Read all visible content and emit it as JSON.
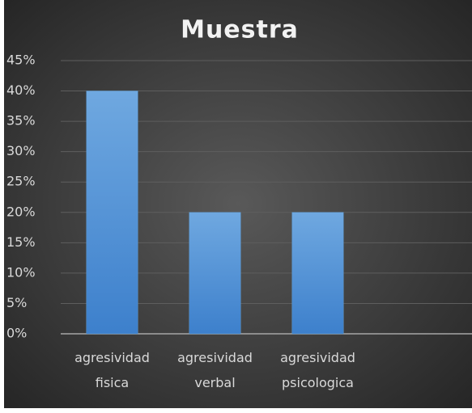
{
  "chart_data": {
    "type": "bar",
    "title": "Muestra",
    "categories": [
      "agresividad fisica",
      "agresividad verbal",
      "agresividad psicologica",
      null
    ],
    "values": [
      40,
      20,
      20,
      null
    ],
    "color": "#5b9bd5",
    "ylim": [
      0,
      45
    ],
    "yticks": [
      {
        "value": 0,
        "label": "0%"
      },
      {
        "value": 5,
        "label": "5%"
      },
      {
        "value": 10,
        "label": "10%"
      },
      {
        "value": 15,
        "label": "15%"
      },
      {
        "value": 20,
        "label": "20%"
      },
      {
        "value": 25,
        "label": "25%"
      },
      {
        "value": 30,
        "label": "30%"
      },
      {
        "value": 35,
        "label": "35%"
      },
      {
        "value": 40,
        "label": "40%"
      },
      {
        "value": 45,
        "label": "45%"
      }
    ],
    "grid": true
  }
}
